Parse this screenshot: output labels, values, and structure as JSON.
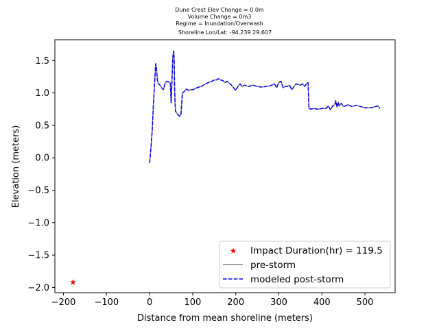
{
  "chart_data": {
    "type": "line",
    "title_lines": [
      "Dune Crest Elev Change = 0.0m",
      "Volume Change = 0m3",
      "Regime = Inundation/Overwash",
      "Shoreline Lon/Lat: -94.239 29.607"
    ],
    "xlabel": "Distance from mean shoreline (meters)",
    "ylabel": "Elevation (meters)",
    "xlim": [
      -220,
      570
    ],
    "ylim": [
      -2.08,
      1.82
    ],
    "xticks": [
      -200,
      -100,
      0,
      100,
      200,
      300,
      400,
      500
    ],
    "yticks": [
      -2.0,
      -1.5,
      -1.0,
      -0.5,
      0.0,
      0.5,
      1.0,
      1.5
    ],
    "xtick_labels": [
      "−200",
      "−100",
      "0",
      "100",
      "200",
      "300",
      "400",
      "500"
    ],
    "ytick_labels": [
      "−2.0",
      "−1.5",
      "−1.0",
      "−0.5",
      "0.0",
      "0.5",
      "1.0",
      "1.5"
    ],
    "grid": false,
    "legend_position": "lower-right",
    "series": [
      {
        "name": "pre-storm",
        "color": "#808080",
        "style": "solid",
        "x": [
          0,
          3,
          6,
          9,
          12,
          14,
          16,
          18,
          20,
          24,
          28,
          32,
          36,
          40,
          44,
          48,
          50,
          52,
          53,
          54,
          55,
          56,
          57,
          58,
          59,
          60,
          62,
          64,
          66,
          68,
          70,
          73,
          76,
          80,
          85,
          90,
          95,
          100,
          110,
          120,
          130,
          140,
          145,
          150,
          155,
          160,
          165,
          170,
          175,
          180,
          185,
          190,
          195,
          200,
          205,
          210,
          215,
          220,
          230,
          240,
          250,
          260,
          270,
          280,
          290,
          295,
          300,
          305,
          310,
          315,
          320,
          325,
          330,
          340,
          350,
          355,
          360,
          365,
          368,
          370,
          375,
          380,
          390,
          400,
          410,
          415,
          420,
          425,
          430,
          432,
          435,
          438,
          440,
          445,
          450,
          455,
          460,
          470,
          480,
          490,
          500,
          510,
          520,
          530,
          535
        ],
        "y": [
          -0.08,
          0.15,
          0.42,
          0.85,
          1.2,
          1.45,
          1.38,
          1.2,
          1.15,
          1.12,
          1.08,
          1.05,
          1.15,
          1.18,
          1.17,
          1.16,
          0.85,
          1.2,
          1.4,
          1.55,
          1.62,
          1.65,
          1.5,
          1.1,
          0.85,
          0.72,
          0.7,
          0.68,
          0.66,
          0.65,
          0.64,
          0.68,
          1.0,
          1.02,
          1.06,
          1.04,
          1.05,
          1.05,
          1.08,
          1.1,
          1.14,
          1.17,
          1.18,
          1.2,
          1.2,
          1.22,
          1.2,
          1.19,
          1.16,
          1.18,
          1.15,
          1.12,
          1.08,
          1.04,
          1.1,
          1.14,
          1.1,
          1.12,
          1.1,
          1.12,
          1.1,
          1.09,
          1.1,
          1.11,
          1.14,
          1.08,
          1.16,
          1.18,
          1.08,
          1.1,
          1.1,
          1.12,
          1.05,
          1.14,
          1.12,
          1.14,
          1.1,
          1.15,
          1.16,
          0.76,
          0.75,
          0.76,
          0.75,
          0.76,
          0.76,
          0.8,
          0.74,
          0.8,
          0.82,
          0.88,
          0.78,
          0.86,
          0.8,
          0.84,
          0.79,
          0.8,
          0.82,
          0.79,
          0.81,
          0.79,
          0.77,
          0.77,
          0.78,
          0.8,
          0.76
        ]
      },
      {
        "name": "modeled post-storm",
        "color": "#0000ff",
        "style": "dashed",
        "x": [
          0,
          3,
          6,
          9,
          12,
          14,
          16,
          18,
          20,
          24,
          28,
          32,
          36,
          40,
          44,
          48,
          50,
          52,
          53,
          54,
          55,
          56,
          57,
          58,
          59,
          60,
          62,
          64,
          66,
          68,
          70,
          73,
          76,
          80,
          85,
          90,
          95,
          100,
          110,
          120,
          130,
          140,
          145,
          150,
          155,
          160,
          165,
          170,
          175,
          180,
          185,
          190,
          195,
          200,
          205,
          210,
          215,
          220,
          230,
          240,
          250,
          260,
          270,
          280,
          290,
          295,
          300,
          305,
          310,
          315,
          320,
          325,
          330,
          340,
          350,
          355,
          360,
          365,
          368,
          370,
          375,
          380,
          390,
          400,
          410,
          415,
          420,
          425,
          430,
          432,
          435,
          438,
          440,
          445,
          450,
          455,
          460,
          470,
          480,
          490,
          500,
          510,
          520,
          530,
          535
        ],
        "y": [
          -0.08,
          0.15,
          0.42,
          0.85,
          1.2,
          1.45,
          1.38,
          1.2,
          1.15,
          1.12,
          1.08,
          1.05,
          1.15,
          1.18,
          1.17,
          1.16,
          0.85,
          1.2,
          1.4,
          1.55,
          1.62,
          1.65,
          1.5,
          1.1,
          0.85,
          0.72,
          0.7,
          0.68,
          0.66,
          0.65,
          0.64,
          0.68,
          1.0,
          1.02,
          1.06,
          1.04,
          1.05,
          1.05,
          1.08,
          1.1,
          1.14,
          1.17,
          1.18,
          1.2,
          1.2,
          1.22,
          1.2,
          1.19,
          1.16,
          1.18,
          1.15,
          1.12,
          1.08,
          1.04,
          1.1,
          1.14,
          1.1,
          1.12,
          1.1,
          1.12,
          1.1,
          1.09,
          1.1,
          1.11,
          1.14,
          1.08,
          1.16,
          1.18,
          1.08,
          1.1,
          1.1,
          1.12,
          1.05,
          1.14,
          1.12,
          1.14,
          1.1,
          1.15,
          1.16,
          0.76,
          0.75,
          0.76,
          0.75,
          0.76,
          0.76,
          0.8,
          0.74,
          0.8,
          0.82,
          0.88,
          0.78,
          0.86,
          0.8,
          0.84,
          0.79,
          0.8,
          0.82,
          0.79,
          0.81,
          0.79,
          0.77,
          0.77,
          0.78,
          0.8,
          0.76
        ]
      }
    ],
    "markers": [
      {
        "name": "Impact Duration(hr) = 119.5",
        "x": -178,
        "y": -1.92,
        "color": "#ff0000",
        "marker": "star"
      }
    ]
  }
}
